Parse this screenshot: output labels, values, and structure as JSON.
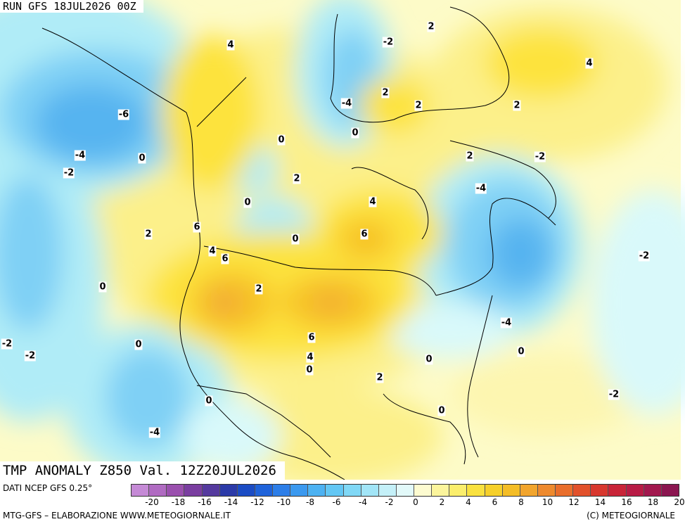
{
  "header": {
    "run_title": "RUN GFS 18JUL2026 00Z"
  },
  "map": {
    "variable_title": "TMP ANOMALY Z850 Val. 12Z20JUL2026",
    "contour_labels": [
      "4",
      "-2",
      "2",
      "4",
      "-6",
      "2",
      "2",
      "-4",
      "0",
      "2",
      "-4",
      "-2",
      "0",
      "0",
      "2",
      "-2",
      "-4",
      "2",
      "0",
      "4",
      "6",
      "0",
      "2",
      "6",
      "4",
      "6",
      "0",
      "2",
      "-2",
      "6",
      "4",
      "0",
      "0",
      "2",
      "-4",
      "-2",
      "-2",
      "0",
      "0",
      "-4",
      "0",
      "0",
      "-2"
    ],
    "field_colors": {
      "minus6": "#56b4f0",
      "minus4": "#7fd0f5",
      "minus2": "#b0ecf7",
      "zero": "#d9f9fa",
      "plus0": "#fdfbc8",
      "plus2": "#fcf08a",
      "plus4": "#fde33c",
      "plus6": "#f7c328",
      "plus8": "#f1a33a"
    }
  },
  "colorbar": {
    "source_label": "DATI NCEP GFS 0.25°",
    "colors": [
      "#c58ad6",
      "#b06bc2",
      "#9a50ae",
      "#7a3ea0",
      "#553a9e",
      "#2b3aa8",
      "#1b4cc4",
      "#1f63da",
      "#2d7ee8",
      "#3b99ef",
      "#4db2f2",
      "#63c7f4",
      "#80d8f6",
      "#a2e5f7",
      "#c4f0f8",
      "#e2f9f9",
      "#fdfbd0",
      "#fcf59c",
      "#fbee6c",
      "#f9e13f",
      "#f6d02a",
      "#f4bd26",
      "#f2a52d",
      "#ee8a2e",
      "#e96e2c",
      "#e2512b",
      "#d8382f",
      "#c92438",
      "#b81b45",
      "#a2184e",
      "#8b1650"
    ],
    "tick_labels": [
      "-20",
      "-18",
      "-16",
      "-14",
      "-12",
      "-10",
      "-8",
      "-6",
      "-4",
      "-2",
      "0",
      "2",
      "4",
      "6",
      "8",
      "10",
      "12",
      "14",
      "16",
      "18",
      "20"
    ]
  },
  "footer": {
    "left": "MTG-GFS – ELABORAZIONE WWW.METEOGIORNALE.IT",
    "right": "(C) METEOGIORNALE"
  }
}
